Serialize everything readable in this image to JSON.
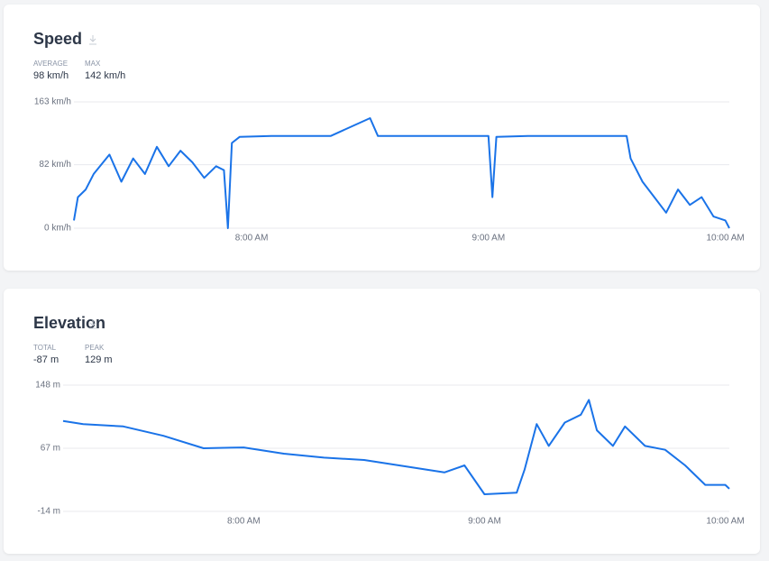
{
  "chart_data": [
    {
      "type": "line",
      "title": "Speed",
      "stats": [
        {
          "label": "AVERAGE",
          "value": "98 km/h"
        },
        {
          "label": "MAX",
          "value": "142 km/h"
        }
      ],
      "x": [
        "7:15 AM",
        "7:16 AM",
        "7:18 AM",
        "7:20 AM",
        "7:24 AM",
        "7:27 AM",
        "7:30 AM",
        "7:33 AM",
        "7:36 AM",
        "7:39 AM",
        "7:42 AM",
        "7:45 AM",
        "7:48 AM",
        "7:51 AM",
        "7:53 AM",
        "7:54 AM",
        "7:55 AM",
        "7:57 AM",
        "8:05 AM",
        "8:15 AM",
        "8:20 AM",
        "8:30 AM",
        "8:32 AM",
        "8:40 AM",
        "8:50 AM",
        "9:00 AM",
        "9:01 AM",
        "9:02 AM",
        "9:10 AM",
        "9:20 AM",
        "9:30 AM",
        "9:35 AM",
        "9:36 AM",
        "9:39 AM",
        "9:42 AM",
        "9:45 AM",
        "9:48 AM",
        "9:51 AM",
        "9:54 AM",
        "9:57 AM",
        "10:00 AM",
        "10:01 AM"
      ],
      "series": [
        {
          "name": "Speed",
          "color": "#1a73e8",
          "values": [
            10,
            40,
            50,
            70,
            95,
            60,
            90,
            70,
            105,
            80,
            100,
            85,
            65,
            80,
            75,
            0,
            110,
            118,
            119,
            119,
            119,
            142,
            119,
            119,
            119,
            119,
            40,
            118,
            119,
            119,
            119,
            119,
            90,
            60,
            40,
            20,
            50,
            30,
            40,
            15,
            10,
            0
          ]
        }
      ],
      "xlim": [
        "7:15 AM",
        "10:01 AM"
      ],
      "xticks": [
        "8:00 AM",
        "9:00 AM",
        "10:00 AM"
      ],
      "ylim": [
        0,
        163
      ],
      "yticks": [
        {
          "value": 0,
          "label": "0 km/h"
        },
        {
          "value": 82,
          "label": "82 km/h"
        },
        {
          "value": 163,
          "label": "163 km/h"
        }
      ],
      "grid": true
    },
    {
      "type": "line",
      "title": "Elevation",
      "stats": [
        {
          "label": "TOTAL",
          "value": "-87 m"
        },
        {
          "label": "PEAK",
          "value": "129 m"
        }
      ],
      "x": [
        "7:15 AM",
        "7:20 AM",
        "7:30 AM",
        "7:40 AM",
        "7:50 AM",
        "8:00 AM",
        "8:10 AM",
        "8:20 AM",
        "8:30 AM",
        "8:40 AM",
        "8:50 AM",
        "8:55 AM",
        "9:00 AM",
        "9:08 AM",
        "9:10 AM",
        "9:13 AM",
        "9:16 AM",
        "9:20 AM",
        "9:24 AM",
        "9:26 AM",
        "9:28 AM",
        "9:32 AM",
        "9:35 AM",
        "9:40 AM",
        "9:45 AM",
        "9:50 AM",
        "9:55 AM",
        "10:00 AM",
        "10:01 AM"
      ],
      "series": [
        {
          "name": "Elevation",
          "color": "#1a73e8",
          "values": [
            102,
            98,
            95,
            83,
            67,
            68,
            60,
            55,
            52,
            44,
            36,
            45,
            8,
            10,
            40,
            98,
            70,
            100,
            110,
            129,
            90,
            70,
            95,
            70,
            65,
            45,
            20,
            20,
            15
          ]
        }
      ],
      "xlim": [
        "7:15 AM",
        "10:01 AM"
      ],
      "xticks": [
        "8:00 AM",
        "9:00 AM",
        "10:00 AM"
      ],
      "ylim": [
        -14,
        148
      ],
      "yticks": [
        {
          "value": -14,
          "label": "-14 m"
        },
        {
          "value": 67,
          "label": "67 m"
        },
        {
          "value": 148,
          "label": "148 m"
        }
      ],
      "grid": true
    }
  ]
}
